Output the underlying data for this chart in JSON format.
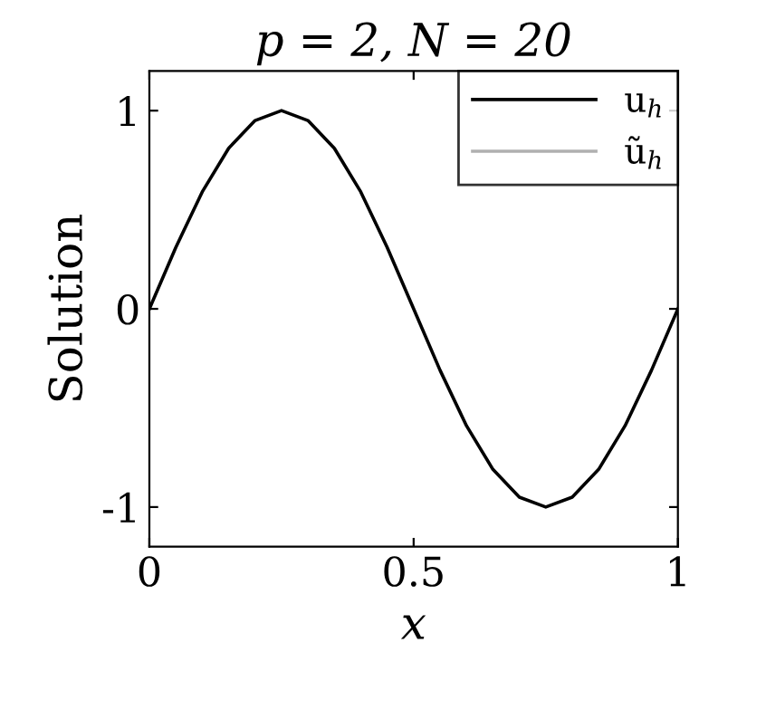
{
  "chart_data": {
    "type": "line",
    "title": "p = 2, N = 20",
    "xlabel": "x",
    "ylabel": "Solution",
    "x": [
      0,
      0.05,
      0.1,
      0.15,
      0.2,
      0.25,
      0.3,
      0.35,
      0.4,
      0.45,
      0.5,
      0.55,
      0.6,
      0.65,
      0.7,
      0.75,
      0.8,
      0.85,
      0.9,
      0.95,
      1
    ],
    "series": [
      {
        "name": "u$_{h}$",
        "color": "#000000",
        "values": [
          0,
          0.31,
          0.59,
          0.81,
          0.95,
          1,
          0.95,
          0.81,
          0.59,
          0.31,
          0,
          -0.31,
          -0.59,
          -0.81,
          -0.95,
          -1,
          -0.95,
          -0.81,
          -0.59,
          -0.31,
          0
        ]
      },
      {
        "name": "ũ$_{h}$",
        "color": "#b0b0b0",
        "values": [
          null,
          null,
          null,
          null,
          null,
          null,
          null,
          null,
          null,
          null,
          null,
          null,
          null,
          null,
          null,
          null,
          null,
          null,
          null,
          null,
          null
        ]
      }
    ],
    "xlim": [
      0,
      1
    ],
    "ylim": [
      -1.2,
      1.2
    ],
    "xticks": [
      0,
      0.5,
      1
    ],
    "yticks": [
      {
        "value": -1,
        "label": "-1"
      },
      0,
      1
    ],
    "legend": "top right",
    "grid": false
  }
}
